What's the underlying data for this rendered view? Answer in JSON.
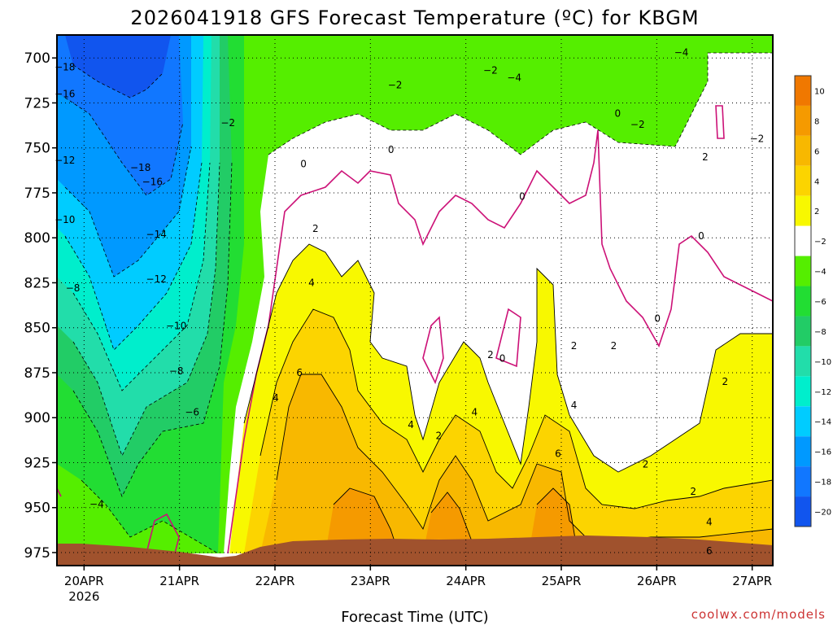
{
  "chart_data": {
    "type": "heatmap",
    "title": "2026041918 GFS Forecast Temperature (ºC) for KBGM",
    "xlabel": "Forecast Time (UTC)",
    "ylabel": "",
    "x_ticks": [
      "20APR",
      "21APR",
      "22APR",
      "23APR",
      "24APR",
      "25APR",
      "26APR",
      "27APR"
    ],
    "x_sublabel": "2026",
    "y_ticks": [
      700,
      725,
      750,
      775,
      800,
      825,
      850,
      875,
      900,
      925,
      950,
      975
    ],
    "ylim": [
      975,
      680
    ],
    "xlim": [
      "2026-04-19T18:00Z",
      "2026-04-27T06:00Z"
    ],
    "grid": true,
    "colorbar": {
      "levels": [
        10,
        8,
        6,
        4,
        2,
        -2,
        -4,
        -6,
        -8,
        -10,
        -12,
        -14,
        -16,
        -18,
        -20
      ],
      "colors": [
        "#f07800",
        "#f59a00",
        "#f8b800",
        "#fcd400",
        "#f8f800",
        "#ffffff",
        "#55ee00",
        "#22dd33",
        "#22cc66",
        "#22ddaa",
        "#00eecc",
        "#00ccff",
        "#0099ff",
        "#1177ff",
        "#1155ee"
      ]
    },
    "contour_labels": [
      {
        "t": "2026-04-19T20:00Z",
        "p": 705,
        "v": -18
      },
      {
        "t": "2026-04-19T20:00Z",
        "p": 720,
        "v": -16
      },
      {
        "t": "2026-04-19T20:00Z",
        "p": 757,
        "v": -12
      },
      {
        "t": "2026-04-19T20:00Z",
        "p": 790,
        "v": -10
      },
      {
        "t": "2026-04-19T22:00Z",
        "p": 828,
        "v": -8
      },
      {
        "t": "2026-04-20T04:00Z",
        "p": 948,
        "v": -4
      },
      {
        "t": "2026-04-20T15:00Z",
        "p": 761,
        "v": -18
      },
      {
        "t": "2026-04-20T18:00Z",
        "p": 769,
        "v": -16
      },
      {
        "t": "2026-04-20T19:00Z",
        "p": 798,
        "v": -14
      },
      {
        "t": "2026-04-20T19:00Z",
        "p": 823,
        "v": -12
      },
      {
        "t": "2026-04-21T00:00Z",
        "p": 849,
        "v": -10
      },
      {
        "t": "2026-04-21T00:00Z",
        "p": 874,
        "v": -8
      },
      {
        "t": "2026-04-21T04:00Z",
        "p": 897,
        "v": -6
      },
      {
        "t": "2026-04-21T13:00Z",
        "p": 736,
        "v": -2
      },
      {
        "t": "2026-04-22T01:00Z",
        "p": 889,
        "v": 4
      },
      {
        "t": "2026-04-22T07:00Z",
        "p": 875,
        "v": 6
      },
      {
        "t": "2026-04-22T10:00Z",
        "p": 825,
        "v": 4
      },
      {
        "t": "2026-04-22T11:00Z",
        "p": 795,
        "v": 2
      },
      {
        "t": "2026-04-22T08:00Z",
        "p": 759,
        "v": 0
      },
      {
        "t": "2026-04-23T07:00Z",
        "p": 715,
        "v": -2
      },
      {
        "t": "2026-04-23T06:00Z",
        "p": 751,
        "v": 0
      },
      {
        "t": "2026-04-23T11:00Z",
        "p": 904,
        "v": 4
      },
      {
        "t": "2026-04-23T18:00Z",
        "p": 910,
        "v": 2
      },
      {
        "t": "2026-04-24T03:00Z",
        "p": 897,
        "v": 4
      },
      {
        "t": "2026-04-24T07:00Z",
        "p": 865,
        "v": 2
      },
      {
        "t": "2026-04-24T10:00Z",
        "p": 867,
        "v": 0
      },
      {
        "t": "2026-04-24T07:00Z",
        "p": 707,
        "v": -2
      },
      {
        "t": "2026-04-24T13:00Z",
        "p": 711,
        "v": -4
      },
      {
        "t": "2026-04-24T15:00Z",
        "p": 777,
        "v": 0
      },
      {
        "t": "2026-04-25T00:00Z",
        "p": 920,
        "v": 6
      },
      {
        "t": "2026-04-25T04:00Z",
        "p": 893,
        "v": 4
      },
      {
        "t": "2026-04-25T04:00Z",
        "p": 860,
        "v": 2
      },
      {
        "t": "2026-04-25T14:00Z",
        "p": 860,
        "v": 2
      },
      {
        "t": "2026-04-25T15:00Z",
        "p": 731,
        "v": 0
      },
      {
        "t": "2026-04-25T20:00Z",
        "p": 737,
        "v": -2
      },
      {
        "t": "2026-04-25T22:00Z",
        "p": 926,
        "v": 2
      },
      {
        "t": "2026-04-26T01:00Z",
        "p": 845,
        "v": 0
      },
      {
        "t": "2026-04-26T07:00Z",
        "p": 697,
        "v": -4
      },
      {
        "t": "2026-04-26T10:00Z",
        "p": 941,
        "v": 2
      },
      {
        "t": "2026-04-26T13:00Z",
        "p": 755,
        "v": 2
      },
      {
        "t": "2026-04-26T12:00Z",
        "p": 799,
        "v": 0
      },
      {
        "t": "2026-04-26T14:00Z",
        "p": 958,
        "v": 4
      },
      {
        "t": "2026-04-26T14:00Z",
        "p": 974,
        "v": 6
      },
      {
        "t": "2026-04-26T18:00Z",
        "p": 880,
        "v": 2
      },
      {
        "t": "2026-04-27T02:00Z",
        "p": 745,
        "v": -2
      }
    ]
  },
  "footer": {
    "credit": "coolwx.com/models"
  }
}
